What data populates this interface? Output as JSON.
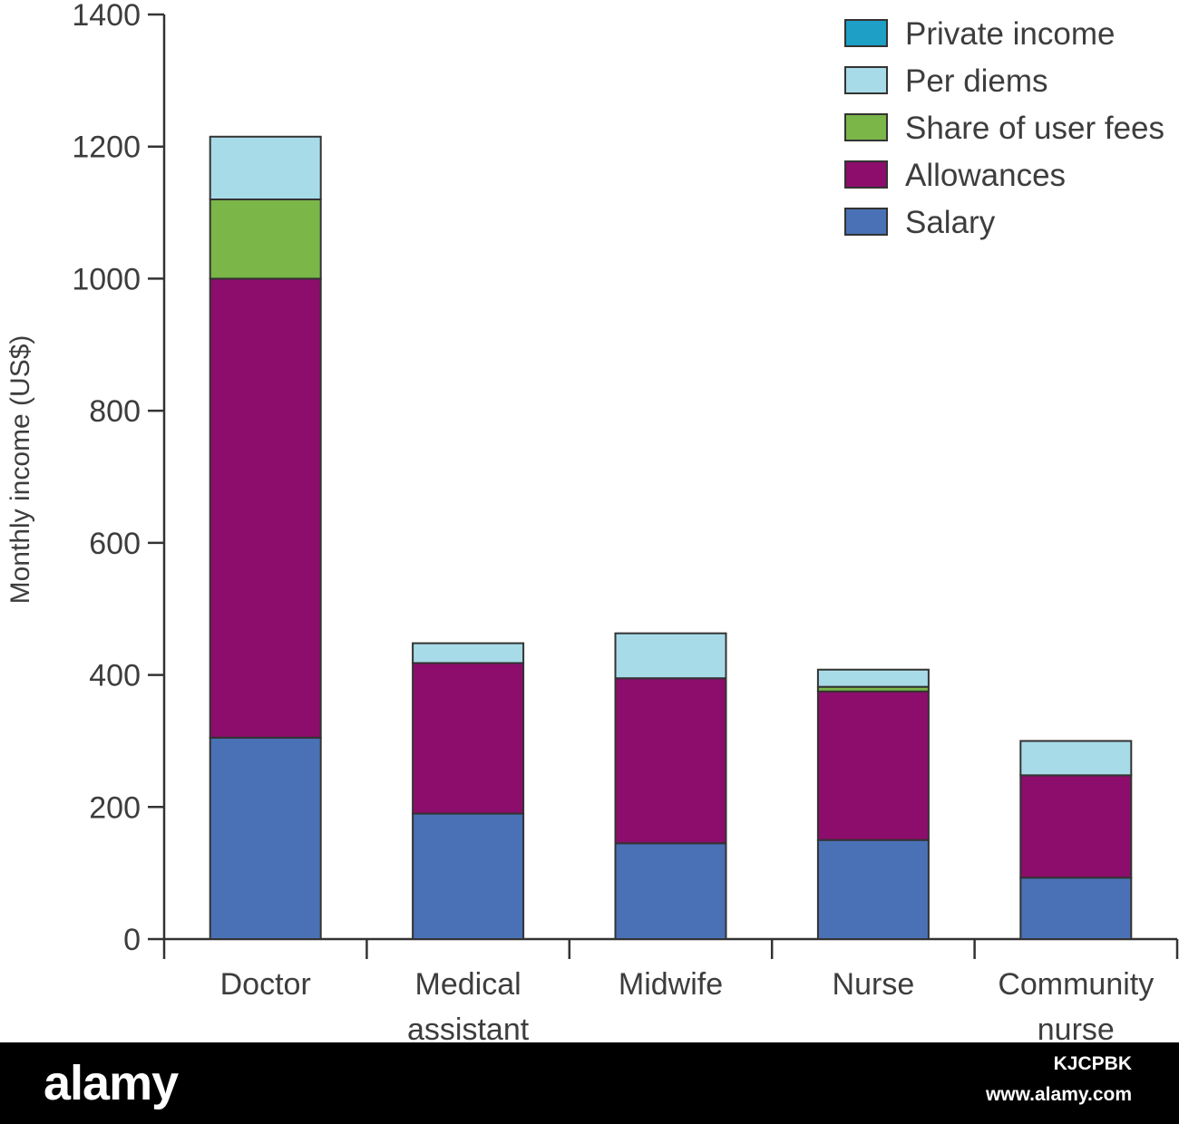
{
  "chart_data": {
    "type": "bar",
    "stacked": true,
    "ylabel": "Monthly income (US$)",
    "xlabel": "",
    "ylim": [
      0,
      1400
    ],
    "yticks": [
      0,
      200,
      400,
      600,
      800,
      1000,
      1200,
      1400
    ],
    "categories": [
      "Doctor",
      "Medical assistant",
      "Midwife",
      "Nurse",
      "Community nurse"
    ],
    "series": [
      {
        "name": "Salary",
        "color": "#4a71b5",
        "values": [
          305,
          190,
          145,
          150,
          93
        ]
      },
      {
        "name": "Allowances",
        "color": "#8c0d6b",
        "values": [
          695,
          228,
          250,
          225,
          155
        ]
      },
      {
        "name": "Share of user fees",
        "color": "#7ab648",
        "values": [
          120,
          0,
          0,
          7,
          0
        ]
      },
      {
        "name": "Per diems",
        "color": "#a8dbe8",
        "values": [
          95,
          30,
          68,
          26,
          52
        ]
      },
      {
        "name": "Private income",
        "color": "#1e9fc6",
        "values": [
          0,
          0,
          0,
          0,
          0
        ]
      }
    ],
    "legend_order": [
      "Private income",
      "Per diems",
      "Share of user fees",
      "Allowances",
      "Salary"
    ],
    "legend_position": "top-right",
    "grid": false
  },
  "watermark": {
    "logo": "alamy",
    "image_id": "KJCPBK",
    "url": "www.alamy.com"
  }
}
